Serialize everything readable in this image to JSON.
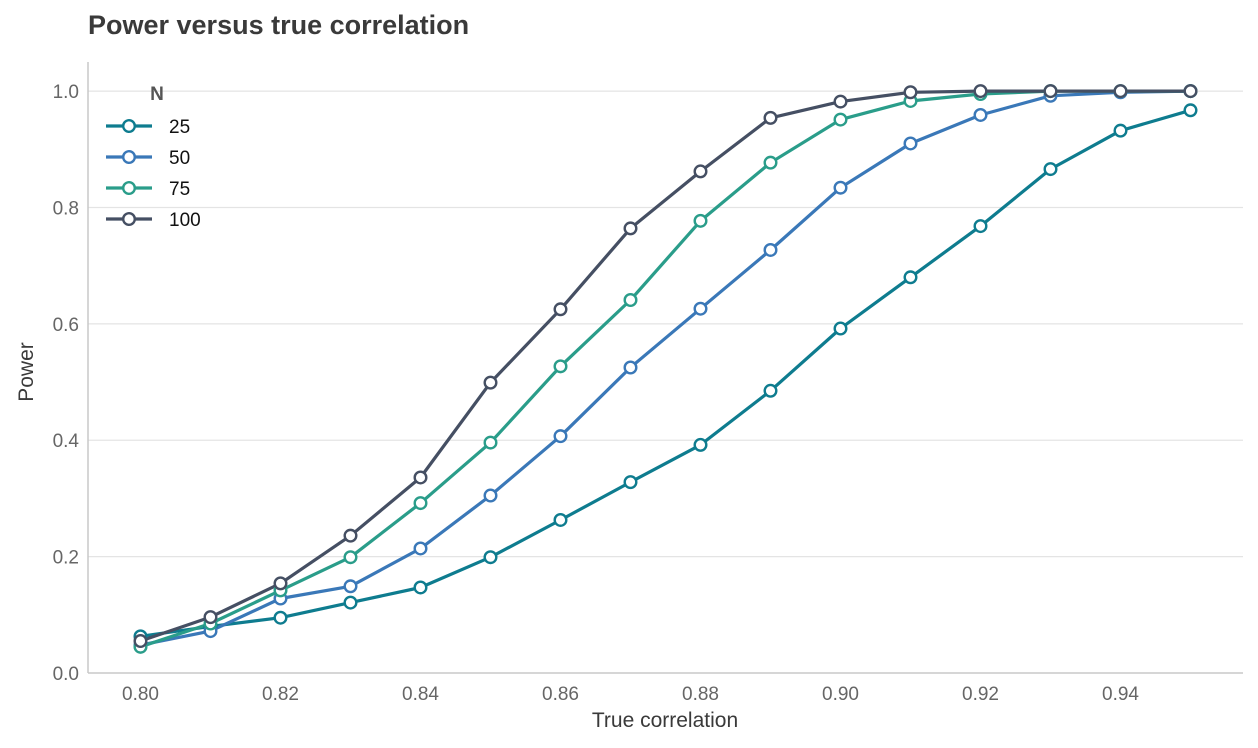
{
  "chart_data": {
    "type": "line",
    "title": "Power versus true correlation",
    "xlabel": "True correlation",
    "ylabel": "Power",
    "x": [
      0.8,
      0.81,
      0.82,
      0.83,
      0.84,
      0.85,
      0.86,
      0.87,
      0.88,
      0.89,
      0.9,
      0.91,
      0.92,
      0.93,
      0.94,
      0.95
    ],
    "xlim": [
      0.7925,
      0.9575
    ],
    "ylim": [
      0.0,
      1.05
    ],
    "x_ticks": [
      0.8,
      0.82,
      0.84,
      0.86,
      0.88,
      0.9,
      0.92,
      0.94
    ],
    "x_tick_labels": [
      "0.80",
      "0.82",
      "0.84",
      "0.86",
      "0.88",
      "0.90",
      "0.92",
      "0.94"
    ],
    "y_ticks": [
      0.0,
      0.2,
      0.4,
      0.6,
      0.8,
      1.0
    ],
    "y_tick_labels": [
      "0.0",
      "0.2",
      "0.4",
      "0.6",
      "0.8",
      "1.0"
    ],
    "grid": "horizontal",
    "legend": {
      "title": "N",
      "placement": "top-left"
    },
    "series": [
      {
        "name": "25",
        "color": "#0e7c8f",
        "values": [
          0.063,
          0.08,
          0.095,
          0.121,
          0.147,
          0.199,
          0.263,
          0.328,
          0.392,
          0.485,
          0.592,
          0.68,
          0.768,
          0.866,
          0.932,
          0.967
        ]
      },
      {
        "name": "50",
        "color": "#3a78b8",
        "values": [
          0.048,
          0.072,
          0.128,
          0.149,
          0.214,
          0.305,
          0.407,
          0.525,
          0.626,
          0.727,
          0.834,
          0.91,
          0.959,
          0.992,
          0.998,
          1.0
        ]
      },
      {
        "name": "75",
        "color": "#2a9d8a",
        "values": [
          0.045,
          0.085,
          0.142,
          0.199,
          0.292,
          0.396,
          0.527,
          0.641,
          0.777,
          0.877,
          0.951,
          0.983,
          0.995,
          1.0,
          1.0,
          1.0
        ]
      },
      {
        "name": "100",
        "color": "#454f63",
        "values": [
          0.055,
          0.096,
          0.154,
          0.236,
          0.336,
          0.499,
          0.625,
          0.764,
          0.862,
          0.954,
          0.982,
          0.998,
          1.0,
          1.0,
          1.0,
          1.0
        ]
      }
    ]
  }
}
